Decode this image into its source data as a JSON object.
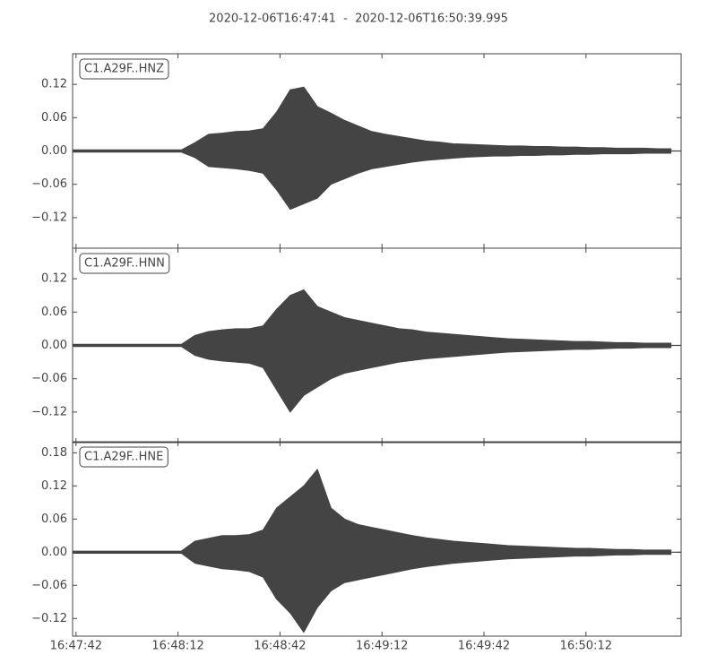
{
  "chart_data": [
    {
      "type": "waveform",
      "title": "2020-12-06T16:47:41  -  2020-12-06T16:50:39.995",
      "label": "C1.A29F..HNZ",
      "color": "#444444",
      "xlim": [
        "16:47:41",
        "16:50:39.995"
      ],
      "xticks": [
        "16:47:42",
        "16:48:12",
        "16:48:42",
        "16:49:12",
        "16:49:42",
        "16:50:12"
      ],
      "ylim": [
        -0.175,
        0.175
      ],
      "yticks": [
        {
          "value": 0.12,
          "label": "0.12"
        },
        {
          "value": 0.06,
          "label": "0.06"
        },
        {
          "value": 0,
          "label": "0.00"
        },
        {
          "value": -0.06,
          "label": "−0.06"
        },
        {
          "value": -0.12,
          "label": "−0.12"
        }
      ],
      "x": [
        "16:47:41",
        "16:47:45",
        "16:47:49",
        "16:47:53",
        "16:47:57",
        "16:48:01",
        "16:48:05",
        "16:48:09",
        "16:48:13",
        "16:48:17",
        "16:48:21",
        "16:48:25",
        "16:48:29",
        "16:48:33",
        "16:48:37",
        "16:48:41",
        "16:48:45",
        "16:48:49",
        "16:48:53",
        "16:48:57",
        "16:49:01",
        "16:49:05",
        "16:49:09",
        "16:49:13",
        "16:49:17",
        "16:49:21",
        "16:49:25",
        "16:49:29",
        "16:49:33",
        "16:49:37",
        "16:49:41",
        "16:49:45",
        "16:49:49",
        "16:49:53",
        "16:49:57",
        "16:50:01",
        "16:50:05",
        "16:50:09",
        "16:50:13",
        "16:50:17",
        "16:50:21",
        "16:50:25",
        "16:50:29",
        "16:50:33",
        "16:50:37"
      ],
      "upper": [
        0.002,
        0.002,
        0.002,
        0.002,
        0.002,
        0.002,
        0.002,
        0.002,
        0.002,
        0.015,
        0.03,
        0.032,
        0.035,
        0.036,
        0.04,
        0.07,
        0.11,
        0.115,
        0.08,
        0.068,
        0.055,
        0.045,
        0.035,
        0.03,
        0.026,
        0.022,
        0.018,
        0.016,
        0.013,
        0.012,
        0.011,
        0.01,
        0.009,
        0.009,
        0.008,
        0.008,
        0.007,
        0.007,
        0.006,
        0.006,
        0.005,
        0.005,
        0.005,
        0.004,
        0.004
      ],
      "lower": [
        -0.002,
        -0.002,
        -0.002,
        -0.002,
        -0.002,
        -0.002,
        -0.002,
        -0.002,
        -0.002,
        -0.012,
        -0.028,
        -0.03,
        -0.032,
        -0.035,
        -0.04,
        -0.07,
        -0.105,
        -0.095,
        -0.085,
        -0.06,
        -0.05,
        -0.04,
        -0.032,
        -0.028,
        -0.024,
        -0.02,
        -0.017,
        -0.015,
        -0.013,
        -0.011,
        -0.01,
        -0.009,
        -0.009,
        -0.008,
        -0.008,
        -0.007,
        -0.007,
        -0.006,
        -0.006,
        -0.005,
        -0.005,
        -0.005,
        -0.004,
        -0.004,
        -0.004
      ]
    },
    {
      "type": "waveform",
      "label": "C1.A29F..HNN",
      "color": "#444444",
      "xlim": [
        "16:47:41",
        "16:50:39.995"
      ],
      "xticks": [
        "16:47:42",
        "16:48:12",
        "16:48:42",
        "16:49:12",
        "16:49:42",
        "16:50:12"
      ],
      "ylim": [
        -0.175,
        0.175
      ],
      "yticks": [
        {
          "value": 0.12,
          "label": "0.12"
        },
        {
          "value": 0.06,
          "label": "0.06"
        },
        {
          "value": 0,
          "label": "0.00"
        },
        {
          "value": -0.06,
          "label": "−0.06"
        },
        {
          "value": -0.12,
          "label": "−0.12"
        }
      ],
      "x": [
        "16:47:41",
        "16:47:45",
        "16:47:49",
        "16:47:53",
        "16:47:57",
        "16:48:01",
        "16:48:05",
        "16:48:09",
        "16:48:13",
        "16:48:17",
        "16:48:21",
        "16:48:25",
        "16:48:29",
        "16:48:33",
        "16:48:37",
        "16:48:41",
        "16:48:45",
        "16:48:49",
        "16:48:53",
        "16:48:57",
        "16:49:01",
        "16:49:05",
        "16:49:09",
        "16:49:13",
        "16:49:17",
        "16:49:21",
        "16:49:25",
        "16:49:29",
        "16:49:33",
        "16:49:37",
        "16:49:41",
        "16:49:45",
        "16:49:49",
        "16:49:53",
        "16:49:57",
        "16:50:01",
        "16:50:05",
        "16:50:09",
        "16:50:13",
        "16:50:17",
        "16:50:21",
        "16:50:25",
        "16:50:29",
        "16:50:33",
        "16:50:37"
      ],
      "upper": [
        0.002,
        0.002,
        0.002,
        0.002,
        0.002,
        0.002,
        0.002,
        0.002,
        0.002,
        0.018,
        0.025,
        0.028,
        0.03,
        0.03,
        0.035,
        0.065,
        0.09,
        0.1,
        0.07,
        0.06,
        0.05,
        0.045,
        0.04,
        0.035,
        0.03,
        0.028,
        0.024,
        0.022,
        0.02,
        0.018,
        0.016,
        0.014,
        0.012,
        0.011,
        0.01,
        0.009,
        0.008,
        0.007,
        0.007,
        0.006,
        0.005,
        0.005,
        0.004,
        0.004,
        0.004
      ],
      "lower": [
        -0.002,
        -0.002,
        -0.002,
        -0.002,
        -0.002,
        -0.002,
        -0.002,
        -0.002,
        -0.002,
        -0.018,
        -0.025,
        -0.028,
        -0.03,
        -0.032,
        -0.04,
        -0.08,
        -0.12,
        -0.09,
        -0.075,
        -0.06,
        -0.05,
        -0.045,
        -0.04,
        -0.035,
        -0.03,
        -0.027,
        -0.024,
        -0.022,
        -0.02,
        -0.018,
        -0.016,
        -0.014,
        -0.012,
        -0.011,
        -0.01,
        -0.009,
        -0.008,
        -0.007,
        -0.007,
        -0.006,
        -0.005,
        -0.005,
        -0.004,
        -0.004,
        -0.004
      ]
    },
    {
      "type": "waveform",
      "label": "C1.A29F..HNE",
      "color": "#444444",
      "xlim": [
        "16:47:41",
        "16:50:39.995"
      ],
      "xticks": [
        "16:47:42",
        "16:48:12",
        "16:48:42",
        "16:49:12",
        "16:49:42",
        "16:50:12"
      ],
      "ylim": [
        -0.152,
        0.2
      ],
      "yticks": [
        {
          "value": 0.18,
          "label": "0.18"
        },
        {
          "value": 0.12,
          "label": "0.12"
        },
        {
          "value": 0.06,
          "label": "0.06"
        },
        {
          "value": 0,
          "label": "0.00"
        },
        {
          "value": -0.06,
          "label": "−0.06"
        },
        {
          "value": -0.12,
          "label": "−0.12"
        }
      ],
      "x": [
        "16:47:41",
        "16:47:45",
        "16:47:49",
        "16:47:53",
        "16:47:57",
        "16:48:01",
        "16:48:05",
        "16:48:09",
        "16:48:13",
        "16:48:17",
        "16:48:21",
        "16:48:25",
        "16:48:29",
        "16:48:33",
        "16:48:37",
        "16:48:41",
        "16:48:45",
        "16:48:49",
        "16:48:53",
        "16:48:57",
        "16:49:01",
        "16:49:05",
        "16:49:09",
        "16:49:13",
        "16:49:17",
        "16:49:21",
        "16:49:25",
        "16:49:29",
        "16:49:33",
        "16:49:37",
        "16:49:41",
        "16:49:45",
        "16:49:49",
        "16:49:53",
        "16:49:57",
        "16:50:01",
        "16:50:05",
        "16:50:09",
        "16:50:13",
        "16:50:17",
        "16:50:21",
        "16:50:25",
        "16:50:29",
        "16:50:33",
        "16:50:37"
      ],
      "upper": [
        0.002,
        0.002,
        0.002,
        0.002,
        0.002,
        0.002,
        0.002,
        0.002,
        0.002,
        0.02,
        0.025,
        0.03,
        0.03,
        0.032,
        0.04,
        0.08,
        0.1,
        0.12,
        0.15,
        0.08,
        0.06,
        0.05,
        0.045,
        0.04,
        0.035,
        0.03,
        0.026,
        0.023,
        0.02,
        0.018,
        0.016,
        0.014,
        0.012,
        0.011,
        0.01,
        0.009,
        0.008,
        0.007,
        0.007,
        0.006,
        0.005,
        0.005,
        0.004,
        0.004,
        0.004
      ],
      "lower": [
        -0.002,
        -0.002,
        -0.002,
        -0.002,
        -0.002,
        -0.002,
        -0.002,
        -0.002,
        -0.002,
        -0.02,
        -0.025,
        -0.03,
        -0.032,
        -0.035,
        -0.045,
        -0.085,
        -0.11,
        -0.145,
        -0.1,
        -0.07,
        -0.055,
        -0.05,
        -0.045,
        -0.04,
        -0.035,
        -0.03,
        -0.026,
        -0.023,
        -0.02,
        -0.018,
        -0.016,
        -0.014,
        -0.012,
        -0.011,
        -0.01,
        -0.009,
        -0.008,
        -0.007,
        -0.007,
        -0.006,
        -0.005,
        -0.005,
        -0.004,
        -0.004,
        -0.004
      ]
    }
  ]
}
